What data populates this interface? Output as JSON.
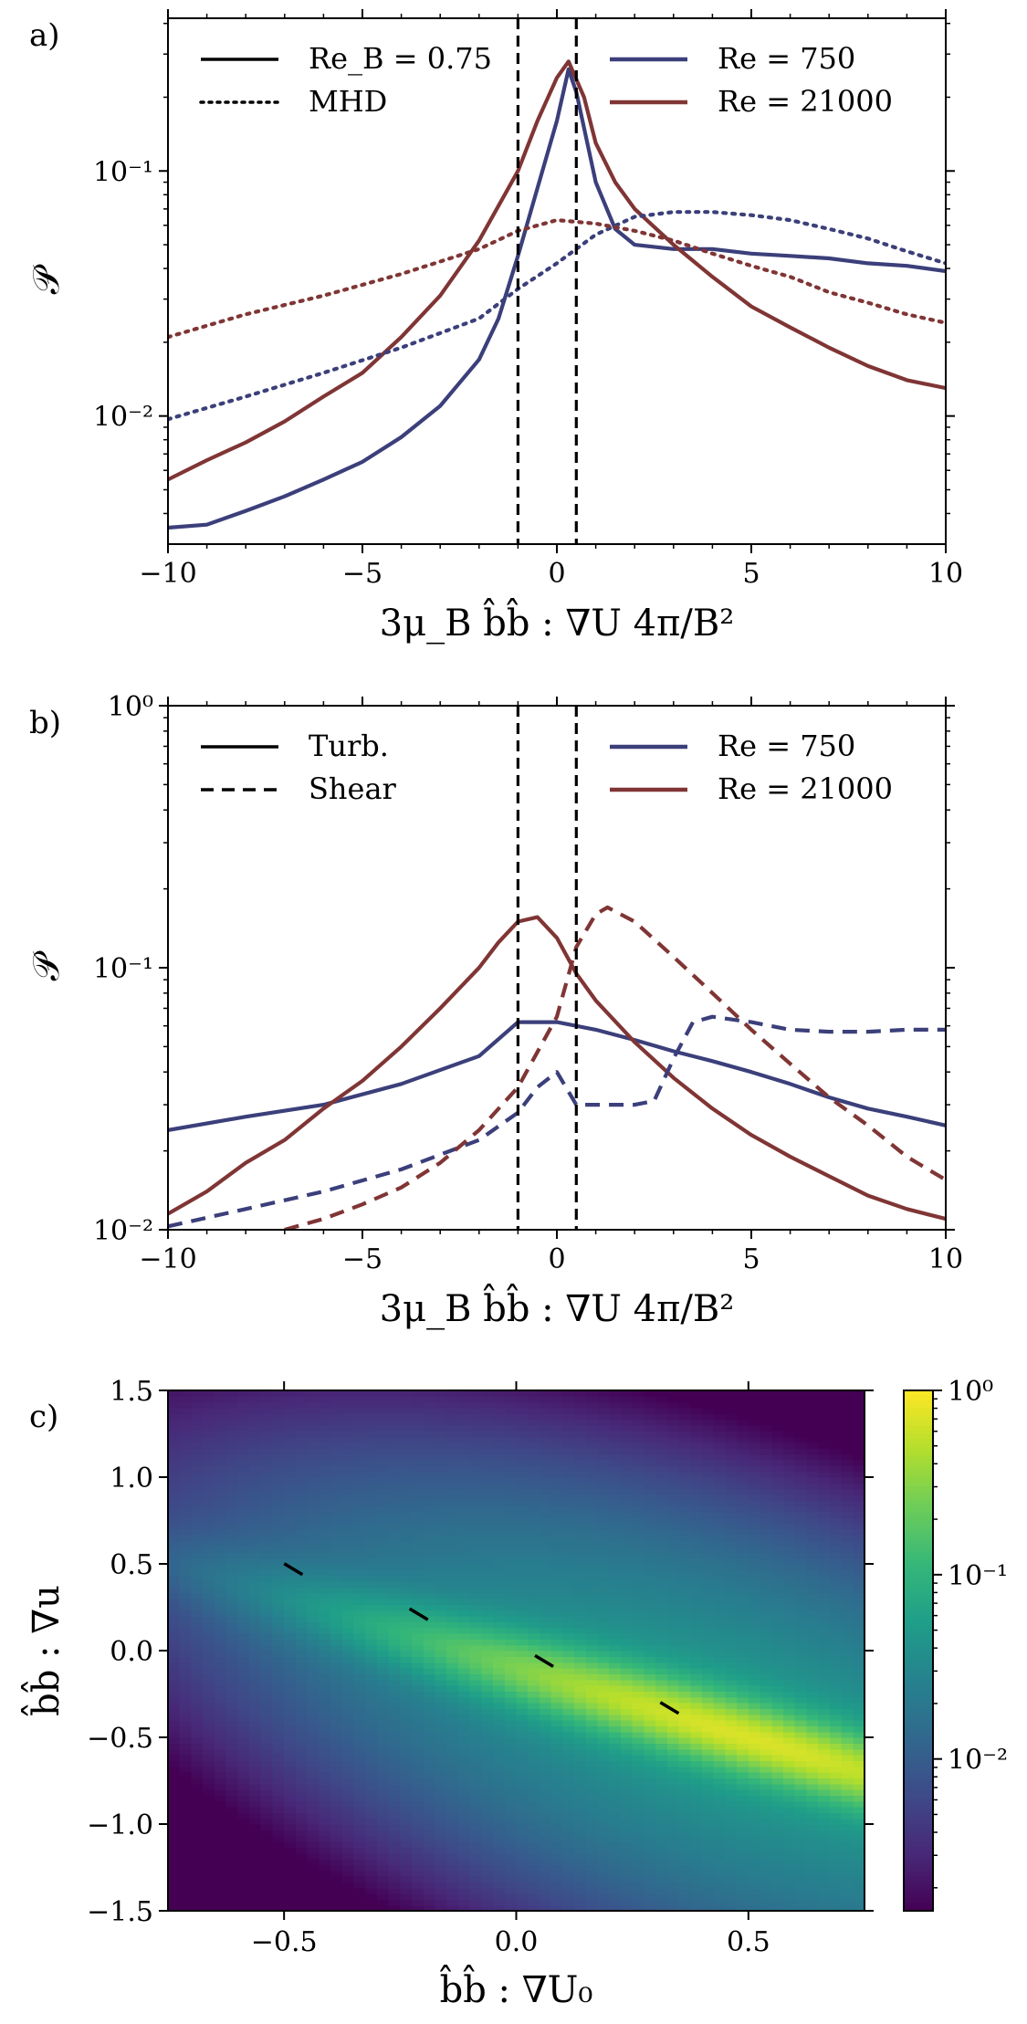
{
  "chart_data": [
    {
      "panel": "a)",
      "type": "line",
      "xlabel": "3μ_B b̂b̂ : ∇U 4π/B²",
      "ylabel": "𝒫",
      "xlim": [
        -10,
        10
      ],
      "ylim": [
        0.003,
        0.42
      ],
      "yscale": "log",
      "xticks": [
        "−10",
        "−5",
        "0",
        "5",
        "10"
      ],
      "yticks": [
        "10⁻²",
        "10⁻¹"
      ],
      "vlines": [
        -1,
        0.5
      ],
      "legend_style": [
        {
          "label": "Re_B = 0.75",
          "style": "solid"
        },
        {
          "label": "MHD",
          "style": "dotted"
        }
      ],
      "legend_color": [
        {
          "label": "Re = 750",
          "color": "#3b3f7a"
        },
        {
          "label": "Re = 21000",
          "color": "#803535"
        }
      ],
      "series": [
        {
          "color": "#3b3f7a",
          "style": "solid",
          "x": [
            -10,
            -9,
            -8,
            -7,
            -6,
            -5,
            -4,
            -3,
            -2,
            -1.5,
            -1,
            -0.5,
            0,
            0.3,
            0.5,
            1,
            1.5,
            2,
            3,
            4,
            5,
            6,
            7,
            8,
            9,
            10
          ],
          "y": [
            0.0035,
            0.0036,
            0.0041,
            0.0047,
            0.0055,
            0.0065,
            0.0082,
            0.011,
            0.017,
            0.025,
            0.045,
            0.085,
            0.16,
            0.26,
            0.21,
            0.09,
            0.058,
            0.05,
            0.048,
            0.048,
            0.046,
            0.045,
            0.044,
            0.042,
            0.041,
            0.039
          ]
        },
        {
          "color": "#803535",
          "style": "solid",
          "x": [
            -10,
            -9,
            -8,
            -7,
            -6,
            -5,
            -4,
            -3,
            -2,
            -1,
            -0.5,
            0,
            0.3,
            0.7,
            1,
            1.5,
            2,
            3,
            4,
            5,
            6,
            7,
            8,
            9,
            10
          ],
          "y": [
            0.0055,
            0.0066,
            0.0078,
            0.0095,
            0.012,
            0.015,
            0.021,
            0.031,
            0.052,
            0.1,
            0.16,
            0.24,
            0.28,
            0.2,
            0.13,
            0.09,
            0.07,
            0.05,
            0.037,
            0.028,
            0.023,
            0.019,
            0.016,
            0.014,
            0.013
          ]
        },
        {
          "color": "#3b3f7a",
          "style": "dotted",
          "x": [
            -10,
            -8,
            -6,
            -4,
            -2,
            -1,
            0,
            1,
            2,
            3,
            4,
            5,
            6,
            7,
            8,
            9,
            10
          ],
          "y": [
            0.0097,
            0.012,
            0.015,
            0.019,
            0.025,
            0.033,
            0.042,
            0.055,
            0.065,
            0.068,
            0.068,
            0.066,
            0.063,
            0.058,
            0.053,
            0.047,
            0.042
          ]
        },
        {
          "color": "#803535",
          "style": "dotted",
          "x": [
            -10,
            -8,
            -6,
            -4,
            -2,
            -1,
            0,
            1,
            2,
            3,
            4,
            5,
            6,
            7,
            8,
            9,
            10
          ],
          "y": [
            0.021,
            0.026,
            0.031,
            0.038,
            0.048,
            0.057,
            0.063,
            0.061,
            0.057,
            0.052,
            0.046,
            0.041,
            0.037,
            0.032,
            0.029,
            0.026,
            0.024
          ]
        }
      ]
    },
    {
      "panel": "b)",
      "type": "line",
      "xlabel": "3μ_B b̂b̂ : ∇U 4π/B²",
      "ylabel": "𝒫",
      "xlim": [
        -10,
        10
      ],
      "ylim": [
        0.01,
        1
      ],
      "yscale": "log",
      "xticks": [
        "−10",
        "−5",
        "0",
        "5",
        "10"
      ],
      "yticks": [
        "10⁻²",
        "10⁻¹",
        "10⁰"
      ],
      "vlines": [
        -1,
        0.5
      ],
      "legend_style": [
        {
          "label": "Turb.",
          "style": "solid"
        },
        {
          "label": "Shear",
          "style": "dashed"
        }
      ],
      "legend_color": [
        {
          "label": "Re = 750",
          "color": "#3b3f7a"
        },
        {
          "label": "Re = 21000",
          "color": "#803535"
        }
      ],
      "series": [
        {
          "color": "#3b3f7a",
          "style": "solid",
          "x": [
            -10,
            -8,
            -6,
            -4,
            -2,
            -1,
            0,
            1,
            2,
            3,
            4,
            5,
            6,
            7,
            8,
            9,
            10
          ],
          "y": [
            0.024,
            0.027,
            0.03,
            0.036,
            0.046,
            0.062,
            0.062,
            0.058,
            0.053,
            0.048,
            0.044,
            0.04,
            0.036,
            0.032,
            0.029,
            0.027,
            0.025
          ]
        },
        {
          "color": "#803535",
          "style": "solid",
          "x": [
            -10,
            -9,
            -8,
            -7,
            -6,
            -5,
            -4,
            -3,
            -2,
            -1.5,
            -1,
            -0.5,
            0,
            0.5,
            1,
            2,
            3,
            4,
            5,
            6,
            7,
            8,
            9,
            10
          ],
          "y": [
            0.0115,
            0.014,
            0.018,
            0.022,
            0.029,
            0.037,
            0.05,
            0.07,
            0.1,
            0.125,
            0.15,
            0.156,
            0.13,
            0.095,
            0.075,
            0.052,
            0.038,
            0.029,
            0.023,
            0.019,
            0.016,
            0.0135,
            0.012,
            0.011
          ]
        },
        {
          "color": "#3b3f7a",
          "style": "dashed",
          "x": [
            -10,
            -8,
            -6,
            -4,
            -2,
            -1,
            -0.5,
            0,
            0.5,
            1,
            2,
            2.5,
            3,
            3.5,
            4,
            5,
            6,
            7,
            8,
            9,
            10
          ],
          "y": [
            0.0103,
            0.012,
            0.014,
            0.017,
            0.022,
            0.028,
            0.035,
            0.04,
            0.03,
            0.03,
            0.03,
            0.031,
            0.045,
            0.062,
            0.065,
            0.062,
            0.058,
            0.057,
            0.057,
            0.058,
            0.058
          ]
        },
        {
          "color": "#803535",
          "style": "dashed",
          "x": [
            -7,
            -6,
            -5,
            -4,
            -3,
            -2,
            -1,
            0,
            0.5,
            1,
            1.3,
            2,
            3,
            4,
            5,
            6,
            7,
            8,
            9,
            10
          ],
          "y": [
            0.01,
            0.011,
            0.0125,
            0.0145,
            0.018,
            0.024,
            0.035,
            0.065,
            0.12,
            0.16,
            0.17,
            0.15,
            0.11,
            0.08,
            0.058,
            0.043,
            0.032,
            0.025,
            0.019,
            0.0155
          ]
        }
      ]
    },
    {
      "panel": "c)",
      "type": "heatmap",
      "xlabel": "b̂b̂ : ∇U₀",
      "ylabel": "b̂b̂ : ∇u",
      "xlim": [
        -0.75,
        0.75
      ],
      "ylim": [
        -1.5,
        1.5
      ],
      "xticks": [
        "−0.5",
        "0.0",
        "0.5"
      ],
      "yticks": [
        "−1.5",
        "−1.0",
        "−0.5",
        "0.0",
        "0.5",
        "1.0",
        "1.5"
      ],
      "colormap": "viridis",
      "color_scale": "log",
      "colorbar_range": [
        0.0015,
        1.0
      ],
      "colorbar_ticks": [
        "10⁻²",
        "10⁻¹",
        "10⁰"
      ],
      "ridge": {
        "slope": -0.8,
        "intercept": -0.1,
        "peak_x": 0.5
      },
      "markers": [
        {
          "x": -0.48,
          "y": 0.47
        },
        {
          "x": -0.21,
          "y": 0.21
        },
        {
          "x": 0.06,
          "y": -0.06
        },
        {
          "x": 0.33,
          "y": -0.33
        }
      ]
    }
  ]
}
